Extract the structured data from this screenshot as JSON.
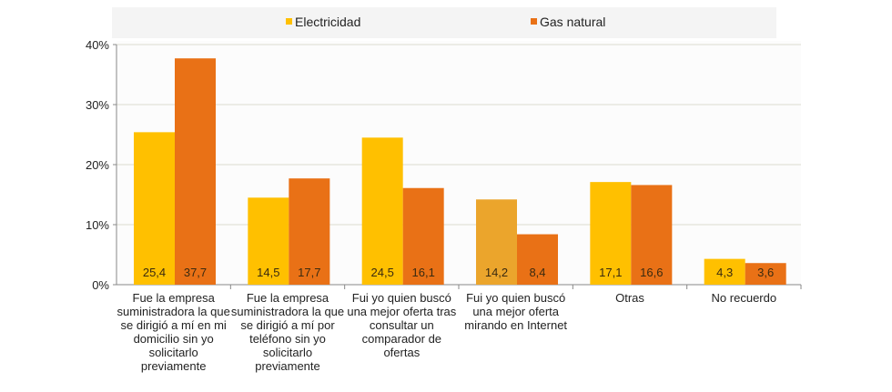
{
  "chart_data": {
    "type": "bar",
    "title": "",
    "xlabel": "",
    "ylabel": "",
    "ylim": [
      0,
      40
    ],
    "yticks": [
      "0%",
      "10%",
      "20%",
      "30%",
      "40%"
    ],
    "grid": true,
    "legend_position": "top",
    "categories": [
      [
        "Fue la empresa",
        "suministradora la que",
        "se dirigió a mí en mi",
        "domicilio sin yo",
        "solicitarlo",
        "previamente"
      ],
      [
        "Fue la empresa",
        "suministradora la que",
        "se dirigió a mí por",
        "teléfono sin yo",
        "solicitarlo",
        "previamente"
      ],
      [
        "Fui yo quien buscó",
        "una mejor oferta tras",
        "consultar un",
        "comparador de",
        "ofertas"
      ],
      [
        "Fui yo quien buscó",
        "una mejor oferta",
        "mirando en Internet"
      ],
      [
        "Otras"
      ],
      [
        "No recuerdo"
      ]
    ],
    "series": [
      {
        "name": "Electricidad",
        "color": "#FFC000",
        "values": [
          25.4,
          14.5,
          24.5,
          14.2,
          17.1,
          4.3
        ],
        "labels": [
          "25,4",
          "14,5",
          "24,5",
          "14,2",
          "17,1",
          "4,3"
        ],
        "point_colors": {
          "3": "#EBA52C"
        }
      },
      {
        "name": "Gas natural",
        "color": "#E97116",
        "values": [
          37.7,
          17.7,
          16.1,
          8.4,
          16.6,
          3.6
        ],
        "labels": [
          "37,7",
          "17,7",
          "16,1",
          "8,4",
          "16,6",
          "3,6"
        ]
      }
    ]
  }
}
